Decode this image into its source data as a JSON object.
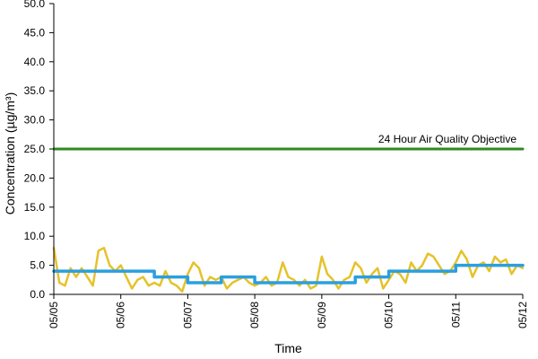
{
  "chart_data": {
    "type": "line",
    "title": "",
    "xlabel": "Time",
    "ylabel": "Concentration (µg/m³)",
    "ylim": [
      0,
      50
    ],
    "y_ticks": [
      "0.0",
      "5.0",
      "10.0",
      "15.0",
      "20.0",
      "25.0",
      "30.0",
      "35.0",
      "40.0",
      "45.0",
      "50.0"
    ],
    "x_ticks": [
      "05/05",
      "05/06",
      "05/07",
      "05/08",
      "05/09",
      "05/10",
      "05/11",
      "05/12"
    ],
    "grid": false,
    "annotation": {
      "text": "24 Hour Air Quality Objective"
    },
    "series": [
      {
        "color": "#e6c229",
        "x": [
          "05/05 00:00",
          "05/05 02:00",
          "05/05 04:00",
          "05/05 06:00",
          "05/05 08:00",
          "05/05 10:00",
          "05/05 12:00",
          "05/05 14:00",
          "05/05 16:00",
          "05/05 18:00",
          "05/05 20:00",
          "05/05 22:00",
          "05/06 00:00",
          "05/06 02:00",
          "05/06 04:00",
          "05/06 06:00",
          "05/06 08:00",
          "05/06 10:00",
          "05/06 12:00",
          "05/06 14:00",
          "05/06 16:00",
          "05/06 18:00",
          "05/06 20:00",
          "05/06 22:00",
          "05/07 00:00",
          "05/07 02:00",
          "05/07 04:00",
          "05/07 06:00",
          "05/07 08:00",
          "05/07 10:00",
          "05/07 12:00",
          "05/07 14:00",
          "05/07 16:00",
          "05/07 18:00",
          "05/07 20:00",
          "05/07 22:00",
          "05/08 00:00",
          "05/08 02:00",
          "05/08 04:00",
          "05/08 06:00",
          "05/08 08:00",
          "05/08 10:00",
          "05/08 12:00",
          "05/08 14:00",
          "05/08 16:00",
          "05/08 18:00",
          "05/08 20:00",
          "05/08 22:00",
          "05/09 00:00",
          "05/09 02:00",
          "05/09 04:00",
          "05/09 06:00",
          "05/09 08:00",
          "05/09 10:00",
          "05/09 12:00",
          "05/09 14:00",
          "05/09 16:00",
          "05/09 18:00",
          "05/09 20:00",
          "05/09 22:00",
          "05/10 00:00",
          "05/10 02:00",
          "05/10 04:00",
          "05/10 06:00",
          "05/10 08:00",
          "05/10 10:00",
          "05/10 12:00",
          "05/10 14:00",
          "05/10 16:00",
          "05/10 18:00",
          "05/10 20:00",
          "05/10 22:00",
          "05/11 00:00",
          "05/11 02:00",
          "05/11 04:00",
          "05/11 06:00",
          "05/11 08:00",
          "05/11 10:00",
          "05/11 12:00",
          "05/11 14:00",
          "05/11 16:00",
          "05/11 18:00",
          "05/11 20:00",
          "05/11 22:00",
          "05/12 00:00"
        ],
        "values": [
          8.0,
          2.0,
          1.5,
          4.5,
          3.0,
          4.5,
          3.0,
          1.5,
          7.5,
          8.0,
          5.0,
          4.0,
          5.0,
          3.0,
          1.0,
          2.5,
          3.0,
          1.5,
          2.0,
          1.5,
          4.0,
          2.0,
          1.5,
          0.5,
          3.5,
          5.5,
          4.5,
          1.5,
          3.0,
          2.5,
          3.0,
          1.0,
          2.0,
          2.5,
          3.0,
          2.0,
          1.5,
          2.0,
          3.0,
          1.5,
          2.0,
          5.5,
          3.0,
          2.5,
          1.5,
          2.5,
          1.0,
          1.5,
          6.5,
          3.5,
          2.5,
          1.0,
          2.5,
          3.0,
          5.5,
          4.5,
          2.0,
          3.5,
          4.5,
          1.0,
          2.5,
          4.0,
          3.5,
          2.0,
          5.5,
          4.0,
          5.0,
          7.0,
          6.5,
          5.0,
          3.5,
          4.0,
          5.5,
          7.5,
          6.0,
          3.0,
          5.0,
          5.5,
          4.0,
          6.5,
          5.5,
          6.0,
          3.5,
          5.0,
          4.5
        ]
      },
      {
        "color": "#2a9fe0",
        "x": [
          "05/05 00:00",
          "05/05 12:00",
          "05/06 00:00",
          "05/06 12:00",
          "05/07 00:00",
          "05/07 12:00",
          "05/08 00:00",
          "05/08 12:00",
          "05/09 00:00",
          "05/09 12:00",
          "05/10 00:00",
          "05/10 12:00",
          "05/11 00:00",
          "05/11 12:00",
          "05/12 00:00"
        ],
        "values": [
          4.0,
          4.0,
          4.0,
          3.0,
          2.0,
          3.0,
          2.0,
          2.0,
          2.0,
          3.0,
          4.0,
          4.0,
          5.0,
          5.0,
          5.0
        ]
      },
      {
        "color": "#2e8b1e",
        "x": [
          "05/05 00:00",
          "05/12 00:00"
        ],
        "values": [
          25.0,
          25.0
        ]
      }
    ]
  }
}
